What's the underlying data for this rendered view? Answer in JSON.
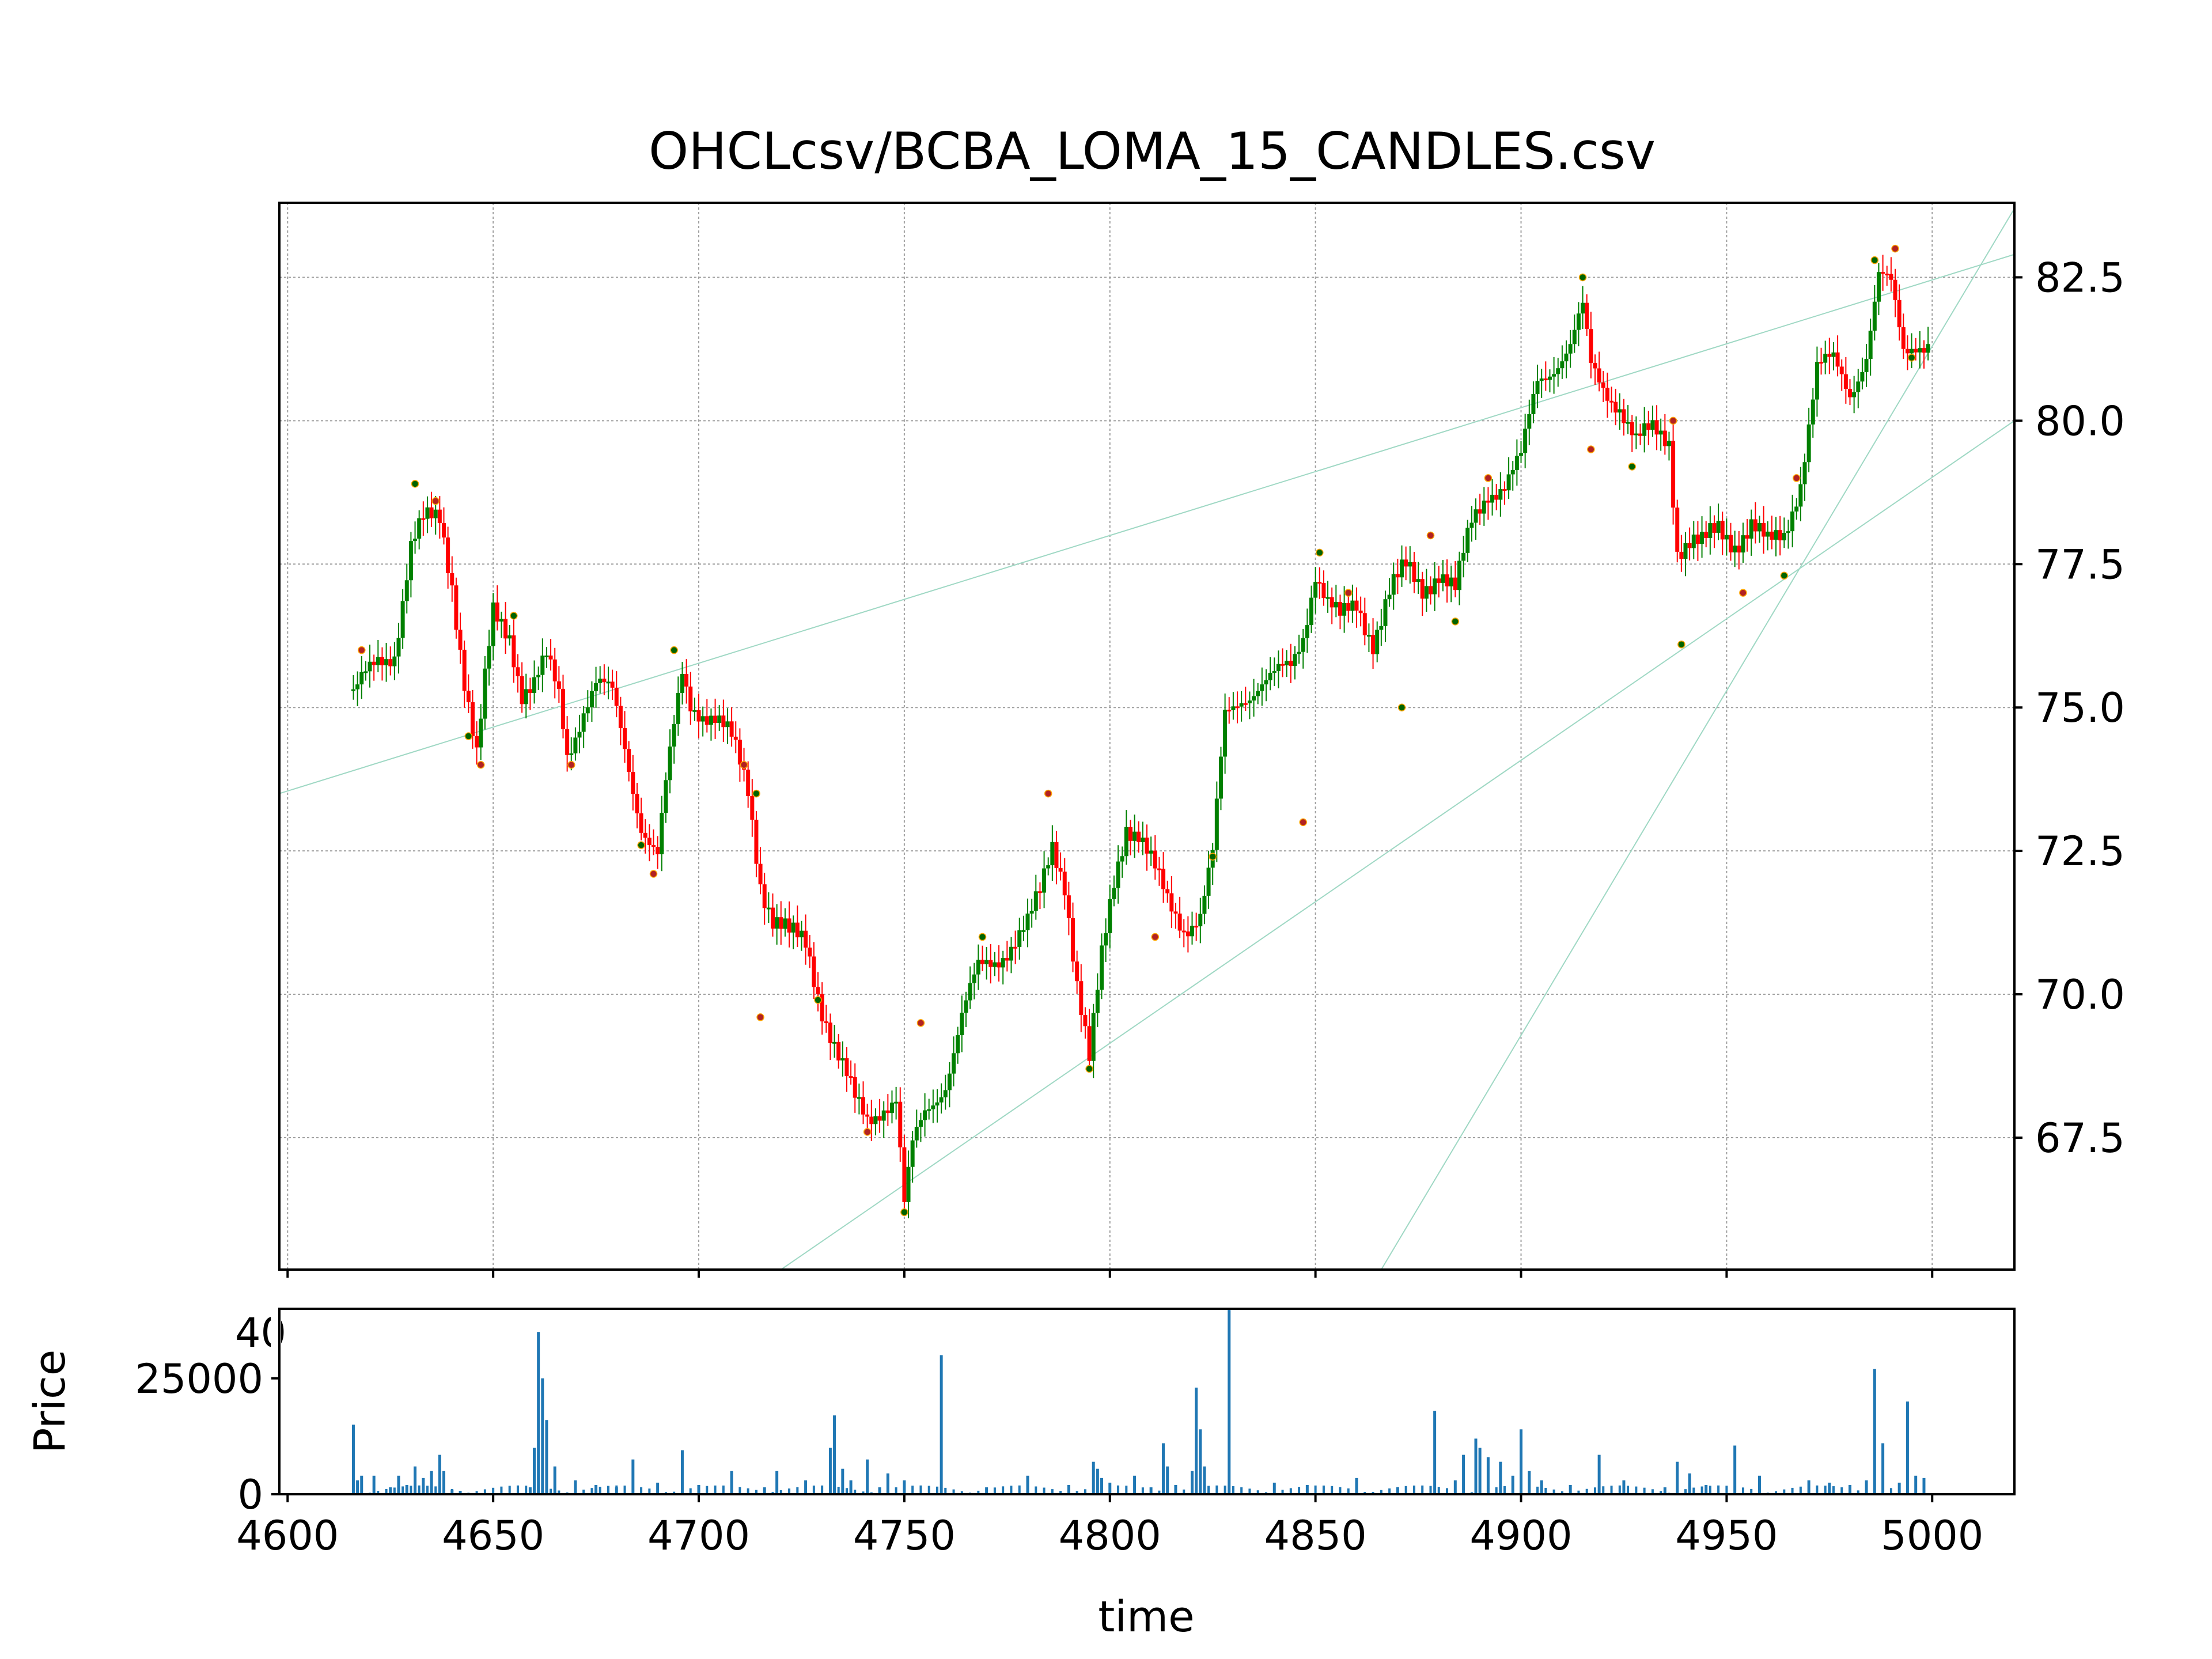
{
  "chart_data": [
    {
      "type": "candlestick",
      "title": "OHCLcsv/BCBA_LOMA_15_CANDLES.csv",
      "xlabel": "",
      "ylabel": "",
      "xlim": [
        4598,
        5020
      ],
      "ylim": [
        65.2,
        83.8
      ],
      "yticks": [
        "67.5",
        "70.0",
        "72.5",
        "75.0",
        "77.5",
        "80.0",
        "82.5"
      ],
      "ytick_values": [
        67.5,
        70.0,
        72.5,
        75.0,
        77.5,
        80.0,
        82.5
      ],
      "grid": true,
      "up_color": "#008000",
      "down_color": "#ff0000",
      "trendline_color": "#9fd8c4",
      "close_path": [
        [
          4616,
          75.2
        ],
        [
          4622,
          75.8
        ],
        [
          4626,
          76.0
        ],
        [
          4630,
          77.8
        ],
        [
          4633,
          78.2
        ],
        [
          4637,
          78.3
        ],
        [
          4640,
          77.2
        ],
        [
          4643,
          75.5
        ],
        [
          4646,
          74.1
        ],
        [
          4648,
          75.4
        ],
        [
          4650,
          76.6
        ],
        [
          4654,
          76.3
        ],
        [
          4657,
          75.3
        ],
        [
          4660,
          75.4
        ],
        [
          4663,
          75.8
        ],
        [
          4666,
          75.2
        ],
        [
          4668,
          74.2
        ],
        [
          4672,
          75.0
        ],
        [
          4675,
          75.4
        ],
        [
          4679,
          75.2
        ],
        [
          4682,
          74.3
        ],
        [
          4686,
          73.0
        ],
        [
          4690,
          72.4
        ],
        [
          4692,
          73.6
        ],
        [
          4696,
          75.6
        ],
        [
          4698,
          75.1
        ],
        [
          4704,
          74.8
        ],
        [
          4708,
          74.4
        ],
        [
          4712,
          73.6
        ],
        [
          4715,
          72.0
        ],
        [
          4718,
          71.3
        ],
        [
          4722,
          71.0
        ],
        [
          4726,
          70.9
        ],
        [
          4730,
          69.8
        ],
        [
          4734,
          68.9
        ],
        [
          4738,
          68.1
        ],
        [
          4741,
          67.8
        ],
        [
          4745,
          68.1
        ],
        [
          4748,
          68.2
        ],
        [
          4750,
          66.3
        ],
        [
          4752,
          67.3
        ],
        [
          4755,
          67.9
        ],
        [
          4760,
          68.5
        ],
        [
          4764,
          69.6
        ],
        [
          4768,
          70.4
        ],
        [
          4772,
          70.6
        ],
        [
          4776,
          70.9
        ],
        [
          4780,
          71.2
        ],
        [
          4783,
          71.7
        ],
        [
          4786,
          72.6
        ],
        [
          4789,
          72.0
        ],
        [
          4792,
          70.2
        ],
        [
          4795,
          68.8
        ],
        [
          4798,
          70.6
        ],
        [
          4801,
          72.0
        ],
        [
          4804,
          73.0
        ],
        [
          4807,
          72.8
        ],
        [
          4811,
          72.1
        ],
        [
          4814,
          71.6
        ],
        [
          4818,
          71.2
        ],
        [
          4822,
          71.4
        ],
        [
          4825,
          72.4
        ],
        [
          4828,
          74.8
        ],
        [
          4832,
          75.2
        ],
        [
          4836,
          75.4
        ],
        [
          4840,
          75.5
        ],
        [
          4844,
          75.7
        ],
        [
          4847,
          76.3
        ],
        [
          4850,
          77.4
        ],
        [
          4853,
          76.8
        ],
        [
          4856,
          76.5
        ],
        [
          4860,
          76.8
        ],
        [
          4864,
          76.2
        ],
        [
          4868,
          77.0
        ],
        [
          4872,
          77.4
        ],
        [
          4876,
          77.1
        ],
        [
          4880,
          77.4
        ],
        [
          4884,
          77.0
        ],
        [
          4888,
          78.2
        ],
        [
          4892,
          78.8
        ],
        [
          4896,
          78.9
        ],
        [
          4900,
          79.3
        ],
        [
          4904,
          80.7
        ],
        [
          4908,
          81.0
        ],
        [
          4912,
          81.3
        ],
        [
          4915,
          81.9
        ],
        [
          4917,
          80.9
        ],
        [
          4920,
          80.6
        ],
        [
          4924,
          80.3
        ],
        [
          4928,
          79.6
        ],
        [
          4932,
          79.8
        ],
        [
          4936,
          79.7
        ],
        [
          4938,
          77.8
        ],
        [
          4941,
          77.9
        ],
        [
          4944,
          77.8
        ],
        [
          4948,
          78.1
        ],
        [
          4952,
          77.9
        ],
        [
          4956,
          78.2
        ],
        [
          4960,
          77.8
        ],
        [
          4964,
          78.0
        ],
        [
          4968,
          79.0
        ],
        [
          4972,
          80.9
        ],
        [
          4976,
          81.0
        ],
        [
          4980,
          80.5
        ],
        [
          4984,
          81.2
        ],
        [
          4987,
          82.5
        ],
        [
          4990,
          82.3
        ],
        [
          4993,
          81.2
        ],
        [
          4996,
          81.4
        ],
        [
          4999,
          81.4
        ]
      ],
      "marker_points": [
        [
          4618,
          76.0
        ],
        [
          4631,
          78.9
        ],
        [
          4636,
          78.6
        ],
        [
          4644,
          74.5
        ],
        [
          4647,
          74.0
        ],
        [
          4655,
          76.6
        ],
        [
          4669,
          74.0
        ],
        [
          4686,
          72.6
        ],
        [
          4689,
          72.1
        ],
        [
          4694,
          76.0
        ],
        [
          4711,
          74.0
        ],
        [
          4714,
          73.5
        ],
        [
          4715,
          69.6
        ],
        [
          4729,
          69.9
        ],
        [
          4741,
          67.6
        ],
        [
          4750,
          66.2
        ],
        [
          4754,
          69.5
        ],
        [
          4769,
          71.0
        ],
        [
          4785,
          73.5
        ],
        [
          4795,
          68.7
        ],
        [
          4811,
          71.0
        ],
        [
          4825,
          72.4
        ],
        [
          4847,
          73.0
        ],
        [
          4851,
          77.7
        ],
        [
          4858,
          77.0
        ],
        [
          4871,
          75.0
        ],
        [
          4878,
          78.0
        ],
        [
          4884,
          76.5
        ],
        [
          4892,
          79.0
        ],
        [
          4915,
          82.5
        ],
        [
          4917,
          79.5
        ],
        [
          4927,
          79.2
        ],
        [
          4937,
          80.0
        ],
        [
          4939,
          76.1
        ],
        [
          4954,
          77.0
        ],
        [
          4964,
          77.3
        ],
        [
          4967,
          79.0
        ],
        [
          4986,
          82.8
        ],
        [
          4991,
          83.0
        ],
        [
          4995,
          81.1
        ]
      ],
      "trendlines": [
        [
          [
            4598,
            73.5
          ],
          [
            5020,
            82.9
          ]
        ],
        [
          [
            4720,
            65.2
          ],
          [
            5020,
            80.0
          ]
        ],
        [
          [
            4866,
            65.2
          ],
          [
            5020,
            83.7
          ]
        ]
      ]
    },
    {
      "type": "bar",
      "title": "",
      "xlabel": "time",
      "ylabel": "Price",
      "xlim": [
        4598,
        5020
      ],
      "ylim": [
        0,
        40000
      ],
      "xticks": [
        "4600",
        "4650",
        "4700",
        "4750",
        "4800",
        "4850",
        "4900",
        "4950",
        "5000"
      ],
      "xtick_values": [
        4600,
        4650,
        4700,
        4750,
        4800,
        4850,
        4900,
        4950,
        5000
      ],
      "yticks": [
        "0",
        "25000"
      ],
      "ytick_values": [
        0,
        25000
      ],
      "clipped_tick_label": "40",
      "bar_color": "#1f77b4",
      "x": [
        4616,
        4617,
        4618,
        4621,
        4625,
        4627,
        4629,
        4631,
        4633,
        4635,
        4637,
        4638,
        4640,
        4642,
        4659,
        4660,
        4661,
        4662,
        4663,
        4665,
        4670,
        4675,
        4680,
        4684,
        4690,
        4696,
        4700,
        4708,
        4716,
        4719,
        4726,
        4732,
        4733,
        4735,
        4737,
        4741,
        4744,
        4746,
        4750,
        4759,
        4770,
        4780,
        4790,
        4796,
        4797,
        4798,
        4800,
        4806,
        4810,
        4813,
        4814,
        4816,
        4820,
        4821,
        4822,
        4823,
        4829,
        4840,
        4848,
        4860,
        4870,
        4879,
        4884,
        4886,
        4889,
        4890,
        4892,
        4895,
        4898,
        4900,
        4902,
        4905,
        4912,
        4919,
        4925,
        4935,
        4938,
        4941,
        4945,
        4952,
        4958,
        4970,
        4975,
        4980,
        4984,
        4986,
        4988,
        4992,
        4994,
        4996,
        4998
      ],
      "values": [
        15000,
        3000,
        4000,
        4000,
        1500,
        4000,
        2000,
        6000,
        3500,
        5000,
        8500,
        5000,
        1000,
        700,
        1500,
        10000,
        35000,
        25000,
        16000,
        6000,
        3000,
        2000,
        1500,
        7500,
        2500,
        9500,
        2000,
        5000,
        1500,
        5000,
        3000,
        10000,
        17000,
        5500,
        3000,
        7500,
        1500,
        4500,
        3000,
        30000,
        1500,
        4000,
        2000,
        7000,
        5500,
        3500,
        2500,
        4000,
        1500,
        11000,
        6000,
        2000,
        5000,
        23000,
        14000,
        6000,
        41000,
        2500,
        2000,
        3500,
        1500,
        18000,
        3000,
        8500,
        12000,
        10000,
        8000,
        7000,
        4000,
        14000,
        5000,
        3000,
        2000,
        8500,
        3000,
        1500,
        7000,
        4500,
        2000,
        10500,
        4000,
        3000,
        2500,
        2000,
        3000,
        27000,
        11000,
        2500,
        20000,
        4000,
        3500
      ]
    }
  ]
}
